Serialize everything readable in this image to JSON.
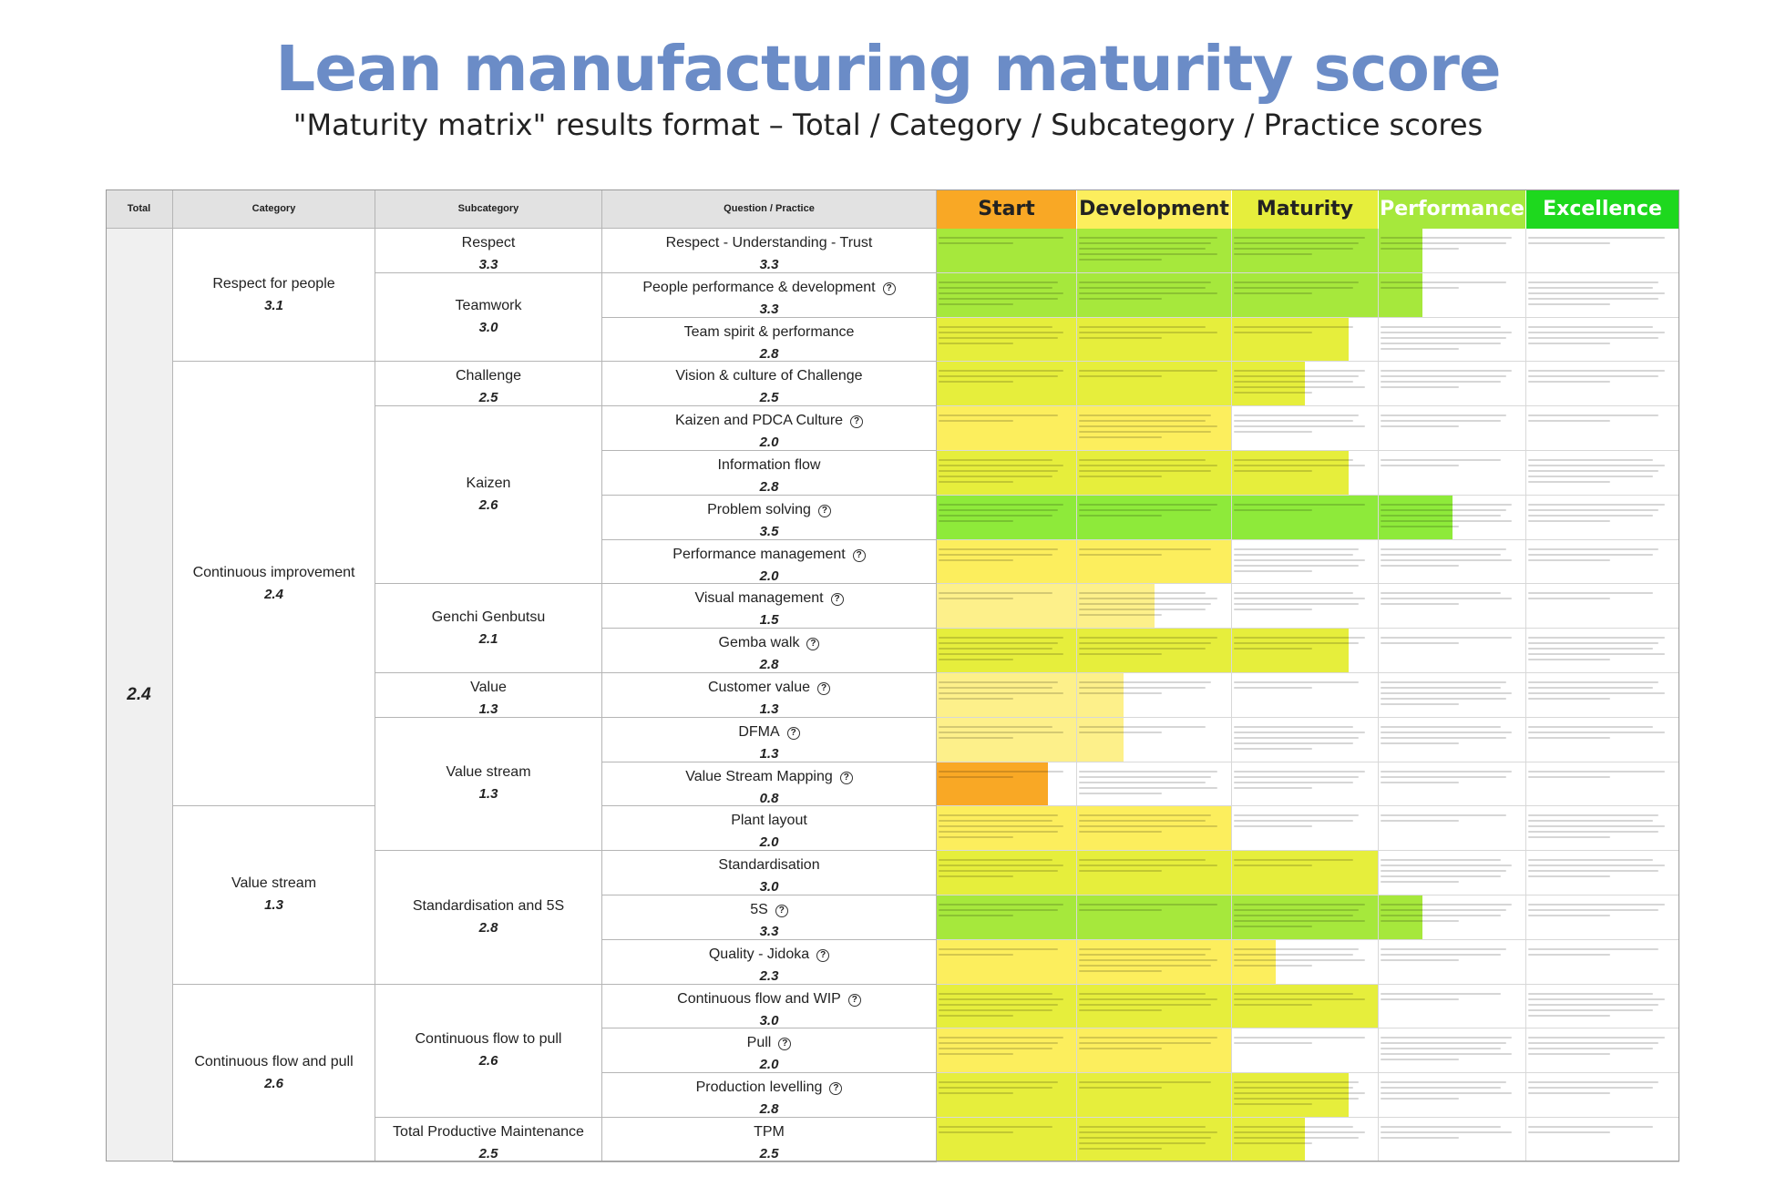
{
  "title": "Lean manufacturing maturity score",
  "subtitle": "\"Maturity matrix\" results format – Total / Category / Subcategory / Practice scores",
  "headers": {
    "total": "Total",
    "category": "Category",
    "subcategory": "Subcategory",
    "practice": "Question / Practice"
  },
  "levels": [
    {
      "label": "Start",
      "color": "#f9a825",
      "text_color": "#222222"
    },
    {
      "label": "Development",
      "color": "#fcee5d",
      "text_color": "#222222"
    },
    {
      "label": "Maturity",
      "color": "#e6ee3c",
      "text_color": "#222222"
    },
    {
      "label": "Performance",
      "color": "#a6e83c",
      "text_color": "#ffffff"
    },
    {
      "label": "Excellence",
      "color": "#1ed81e",
      "text_color": "#ffffff"
    }
  ],
  "total_score": "2.4",
  "categories": [
    {
      "name": "Respect for people",
      "score": "3.1"
    },
    {
      "name": "Continuous improvement",
      "score": "2.4"
    },
    {
      "name": "Value stream",
      "score": "1.3"
    },
    {
      "name": "Continuous flow and pull",
      "score": "2.6"
    }
  ],
  "subcategories": [
    {
      "name": "Respect",
      "score": "3.3"
    },
    {
      "name": "Teamwork",
      "score": "3.0"
    },
    {
      "name": "Challenge",
      "score": "2.5"
    },
    {
      "name": "Kaizen",
      "score": "2.6"
    },
    {
      "name": "Genchi Genbutsu",
      "score": "2.1"
    },
    {
      "name": "Value",
      "score": "1.3"
    },
    {
      "name": "Value stream",
      "score": "1.3"
    },
    {
      "name": "Standardisation and 5S",
      "score": "2.8"
    },
    {
      "name": "Continuous flow to pull",
      "score": "2.6"
    },
    {
      "name": "Total Productive Maintenance",
      "score": "2.5"
    }
  ],
  "practices": [
    {
      "name": "Respect - Understanding - Trust",
      "score": "3.3",
      "help": false,
      "fill": 3.3
    },
    {
      "name": "People performance & development",
      "score": "3.3",
      "help": true,
      "fill": 3.3
    },
    {
      "name": "Team spirit & performance",
      "score": "2.8",
      "help": false,
      "fill": 2.8
    },
    {
      "name": "Vision & culture of Challenge",
      "score": "2.5",
      "help": false,
      "fill": 2.5
    },
    {
      "name": "Kaizen and PDCA Culture",
      "score": "2.0",
      "help": true,
      "fill": 2.0
    },
    {
      "name": "Information flow",
      "score": "2.8",
      "help": false,
      "fill": 2.8
    },
    {
      "name": "Problem solving",
      "score": "3.5",
      "help": true,
      "fill": 3.5
    },
    {
      "name": "Performance management",
      "score": "2.0",
      "help": true,
      "fill": 2.0
    },
    {
      "name": "Visual management",
      "score": "1.5",
      "help": true,
      "fill": 1.5
    },
    {
      "name": "Gemba walk",
      "score": "2.8",
      "help": true,
      "fill": 2.8
    },
    {
      "name": "Customer value",
      "score": "1.3",
      "help": true,
      "fill": 1.3
    },
    {
      "name": "DFMA",
      "score": "1.3",
      "help": true,
      "fill": 1.3
    },
    {
      "name": "Value Stream Mapping",
      "score": "0.8",
      "help": true,
      "fill": 0.8
    },
    {
      "name": "Plant layout",
      "score": "2.0",
      "help": false,
      "fill": 2.0
    },
    {
      "name": "Standardisation",
      "score": "3.0",
      "help": false,
      "fill": 3.0
    },
    {
      "name": "5S",
      "score": "3.3",
      "help": true,
      "fill": 3.3
    },
    {
      "name": "Quality - Jidoka",
      "score": "2.3",
      "help": true,
      "fill": 2.3
    },
    {
      "name": "Continuous flow and WIP",
      "score": "3.0",
      "help": true,
      "fill": 3.0
    },
    {
      "name": "Pull",
      "score": "2.0",
      "help": true,
      "fill": 2.0
    },
    {
      "name": "Production levelling",
      "score": "2.8",
      "help": true,
      "fill": 2.8
    },
    {
      "name": "TPM",
      "score": "2.5",
      "help": false,
      "fill": 2.5
    }
  ],
  "colors": {
    "start": "#f9a825",
    "development": "#fcee5d",
    "maturity": "#e6ee3c",
    "performance": "#a6e83c",
    "excellence": "#8eea3a",
    "partial_start": "#fdf08a",
    "header_grey": "#e2e2e2",
    "column_grey": "#f0f0f0",
    "title_blue": "#6b8cc7"
  }
}
